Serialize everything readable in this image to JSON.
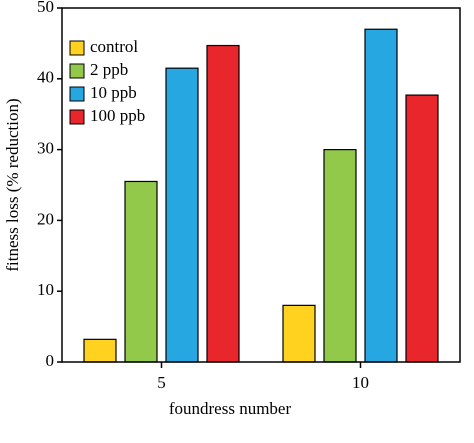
{
  "chart_data": {
    "type": "bar",
    "xlabel": "foundress number",
    "ylabel": "fitness loss (% reduction)",
    "categories": [
      "5",
      "10"
    ],
    "series": [
      {
        "name": "control",
        "color": "#ffd21f",
        "values": [
          3.2,
          8
        ]
      },
      {
        "name": "2 ppb",
        "color": "#92c94a",
        "values": [
          25.5,
          30
        ]
      },
      {
        "name": "10 ppb",
        "color": "#27a7e1",
        "values": [
          41.5,
          47
        ]
      },
      {
        "name": "100 ppb",
        "color": "#e8262c",
        "values": [
          44.7,
          37.7
        ]
      }
    ],
    "ylim": [
      0,
      50
    ],
    "yticks": [
      0,
      10,
      20,
      30,
      40,
      50
    ],
    "legend": "upper left"
  }
}
